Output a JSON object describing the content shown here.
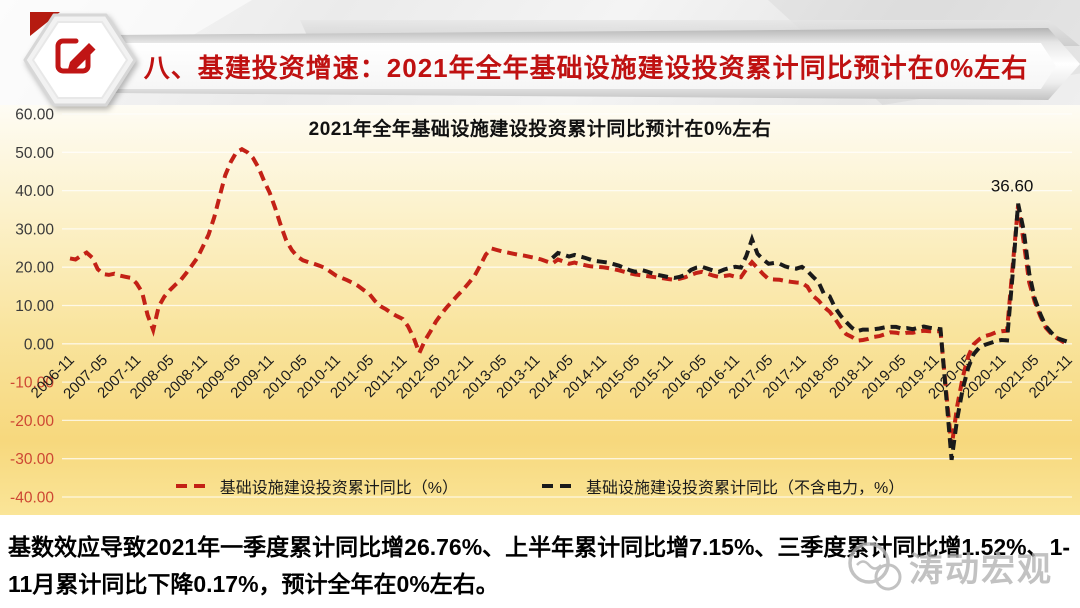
{
  "header": {
    "title": "八、基建投资增速：2021年全年基础设施建设投资累计同比预计在0%左右",
    "title_color": "#bf1111",
    "badge_icon": "edit-pencil-icon"
  },
  "chart_data": {
    "type": "line",
    "title": "2021年全年基础设施建设投资累计同比预计在0%左右",
    "ylim": [
      -40,
      60
    ],
    "y_tick_step": 10,
    "y_tick_labels": [
      "60.00",
      "50.00",
      "40.00",
      "30.00",
      "20.00",
      "10.00",
      "0.00",
      "-10.00",
      "-20.00",
      "-30.00",
      "-40.00"
    ],
    "grid": true,
    "legend_position": "bottom",
    "x_start_month": "2006-11",
    "x_end_month": "2021-11",
    "x_tick_interval_months": 6,
    "x_tick_labels": [
      "2006-11",
      "2007-05",
      "2007-11",
      "2008-05",
      "2008-11",
      "2009-05",
      "2009-11",
      "2010-05",
      "2010-11",
      "2011-05",
      "2011-11",
      "2012-05",
      "2012-11",
      "2013-05",
      "2013-11",
      "2014-05",
      "2014-11",
      "2015-05",
      "2015-11",
      "2016-05",
      "2016-11",
      "2017-05",
      "2017-11",
      "2018-05",
      "2018-11",
      "2019-05",
      "2019-11",
      "2020-05",
      "2020-11",
      "2021-05",
      "2021-11"
    ],
    "colors": {
      "positive_tick": "#3a3a3a",
      "negative_tick": "#cd4733"
    },
    "annotation": {
      "text": "36.60",
      "value": 36.6,
      "month": "2021-02",
      "month_index": 171
    },
    "series": [
      {
        "name": "基础设施建设投资累计同比（%）",
        "color": "#c32116",
        "dash": true,
        "start_month": "2006-11",
        "start_index": 0,
        "values": [
          22.3,
          22.0,
          23.0,
          23.8,
          22.5,
          19.5,
          18.2,
          18.0,
          18.3,
          17.8,
          17.5,
          17.2,
          15.8,
          13.5,
          7.5,
          3.6,
          9.7,
          12.3,
          14.0,
          15.4,
          16.7,
          18.5,
          20.5,
          22.5,
          25.5,
          28.5,
          33.0,
          38.5,
          44.0,
          47.5,
          50.0,
          50.8,
          50.0,
          48.5,
          46.0,
          42.5,
          39.5,
          35.5,
          31.0,
          27.0,
          24.5,
          22.8,
          21.8,
          21.3,
          20.9,
          20.4,
          19.8,
          18.8,
          17.8,
          17.2,
          16.6,
          15.9,
          15.1,
          14.0,
          13.0,
          11.2,
          9.8,
          9.0,
          8.0,
          7.2,
          6.5,
          4.5,
          1.5,
          -2.4,
          0.8,
          3.2,
          5.8,
          7.8,
          9.6,
          11.2,
          12.8,
          14.3,
          16.0,
          17.8,
          20.5,
          23.3,
          24.9,
          24.5,
          24.1,
          23.8,
          23.5,
          23.2,
          23.0,
          22.7,
          22.4,
          22.0,
          21.5,
          21.0,
          22.0,
          21.5,
          20.9,
          21.2,
          20.8,
          20.5,
          20.2,
          20.1,
          20.0,
          19.8,
          19.5,
          19.2,
          18.8,
          18.4,
          18.1,
          17.9,
          17.7,
          17.5,
          17.3,
          17.1,
          16.9,
          16.7,
          17.0,
          17.4,
          18.0,
          18.5,
          18.8,
          18.3,
          17.8,
          17.5,
          17.7,
          17.9,
          17.5,
          17.4,
          19.5,
          21.3,
          19.8,
          18.2,
          16.9,
          16.8,
          16.7,
          16.4,
          16.2,
          16.0,
          15.9,
          14.9,
          12.5,
          11.3,
          9.6,
          8.4,
          6.5,
          4.3,
          2.5,
          1.8,
          0.8,
          1.0,
          1.3,
          1.8,
          2.0,
          2.5,
          3.0,
          2.9,
          2.6,
          2.9,
          2.9,
          3.2,
          3.4,
          3.3,
          3.3,
          3.3,
          -12.0,
          -26.9,
          -16.4,
          -8.8,
          -3.3,
          -0.1,
          1.2,
          2.0,
          2.4,
          3.0,
          3.3,
          3.4,
          20.0,
          36.2,
          26.8,
          16.0,
          11.0,
          7.2,
          4.2,
          2.6,
          1.5,
          0.6,
          -0.2
        ]
      },
      {
        "name": "基础设施建设投资累计同比（不含电力，%）",
        "color": "#1a1a1a",
        "dash": true,
        "start_month": "2014-02",
        "start_index": 87,
        "values": [
          22.4,
          23.7,
          23.3,
          22.8,
          23.2,
          22.8,
          22.4,
          21.9,
          21.6,
          21.4,
          21.2,
          20.8,
          20.4,
          19.8,
          19.2,
          18.8,
          19.3,
          18.9,
          18.4,
          18.0,
          17.7,
          17.4,
          17.2,
          17.5,
          18.0,
          19.3,
          19.9,
          20.1,
          19.6,
          19.1,
          18.8,
          19.4,
          19.8,
          20.1,
          19.9,
          23.0,
          27.3,
          23.5,
          22.0,
          20.9,
          21.1,
          20.9,
          20.2,
          19.8,
          19.6,
          20.1,
          19.0,
          17.5,
          16.1,
          13.0,
          12.4,
          9.4,
          7.3,
          5.7,
          4.2,
          3.3,
          3.7,
          3.7,
          3.8,
          4.0,
          4.3,
          4.4,
          4.4,
          4.0,
          4.1,
          3.8,
          4.2,
          4.5,
          4.2,
          4.0,
          3.8,
          -13.0,
          -30.3,
          -19.7,
          -11.8,
          -6.3,
          -2.7,
          -1.0,
          -0.3,
          0.2,
          0.7,
          1.0,
          0.9,
          18.0,
          36.6,
          29.7,
          18.4,
          11.8,
          7.8,
          4.6,
          2.9,
          1.5,
          1.0,
          0.5
        ]
      }
    ]
  },
  "footer": {
    "text": "基数效应导致2021年一季度累计同比增26.76%、上半年累计同比增7.15%、三季度累计同比增1.52%、1-11月累计同比下降0.17%，预计全年在0%左右。"
  },
  "watermark": {
    "text": "涛动宏观"
  }
}
